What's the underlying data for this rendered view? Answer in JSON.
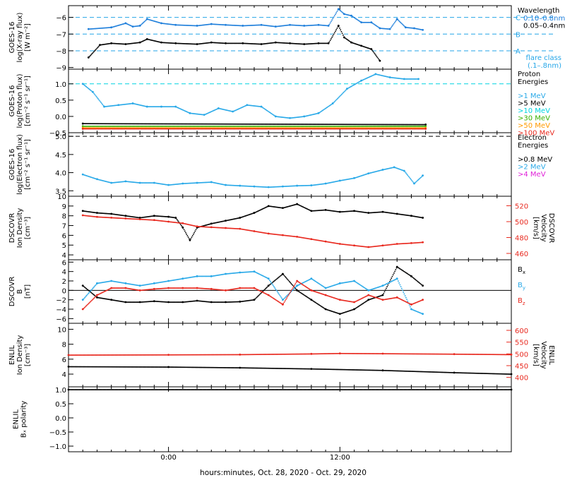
{
  "colors": {
    "axis": "#000000",
    "blue": "#1f7fdb",
    "lightblue": "#29a9e8",
    "cyan": "#00d4e0",
    "green": "#38b000",
    "orange": "#ff9a00",
    "red": "#e8281e",
    "magenta": "#e020d8",
    "dash": "#25a6e8"
  },
  "xaxis": {
    "title": "hours:minutes, Oct. 28, 2020 - Oct. 29, 2020",
    "ticks": [
      {
        "hour": 0,
        "label": "0:00"
      },
      {
        "hour": 12,
        "label": "12:00"
      }
    ],
    "xlim": [
      -7,
      24
    ],
    "minor_step_hours": 1
  },
  "chart_data": [
    {
      "id": "xray",
      "type": "scatter",
      "ylabel_lines": [
        "GOES-16",
        "log(X-ray flux)",
        "[W m⁻²]"
      ],
      "ylim": [
        -9.1,
        -5.3
      ],
      "yticks": [
        {
          "v": -9,
          "t": "−9"
        },
        {
          "v": -8,
          "t": "−8"
        },
        {
          "v": -7,
          "t": "−7"
        },
        {
          "v": -6,
          "t": "−6"
        }
      ],
      "legend_title": "Wavelength",
      "legend": [
        {
          "t": "0.10–0.8nm",
          "c": "blue"
        },
        {
          "t": "0.05–0.4nm",
          "c": "axis"
        }
      ],
      "flare_classes": [
        {
          "label": "C",
          "y": -6
        },
        {
          "label": "B",
          "y": -7
        },
        {
          "label": "A",
          "y": -8
        }
      ],
      "flare_note": [
        "flare class",
        "(.1–.8nm)"
      ],
      "series": [
        {
          "color": "blue",
          "x": [
            -5.6,
            -4,
            -3,
            -2.5,
            -2,
            -1.5,
            -0.5,
            0.5,
            2,
            3,
            4,
            5.2,
            6.5,
            7.5,
            8.5,
            9.5,
            10.5,
            11.2,
            11.9,
            12.3,
            12.8,
            13.5,
            14.2,
            14.8,
            15.5,
            16,
            16.6,
            17.2,
            17.8
          ],
          "y": [
            -6.7,
            -6.6,
            -6.35,
            -6.55,
            -6.5,
            -6.1,
            -6.35,
            -6.45,
            -6.5,
            -6.4,
            -6.45,
            -6.5,
            -6.45,
            -6.55,
            -6.45,
            -6.5,
            -6.45,
            -6.5,
            -5.5,
            -5.8,
            -5.9,
            -6.3,
            -6.3,
            -6.65,
            -6.7,
            -6.1,
            -6.6,
            -6.65,
            -6.75
          ]
        },
        {
          "color": "axis",
          "x": [
            -5.6,
            -4.8,
            -4,
            -3,
            -2,
            -1.5,
            -0.5,
            0.5,
            2,
            3,
            4,
            5.2,
            6.5,
            7.5,
            8.5,
            9.5,
            10.5,
            11.2,
            11.9,
            12.3,
            12.8,
            13.5,
            14.2,
            14.8
          ],
          "y": [
            -8.4,
            -7.65,
            -7.55,
            -7.6,
            -7.5,
            -7.3,
            -7.5,
            -7.55,
            -7.6,
            -7.5,
            -7.55,
            -7.55,
            -7.6,
            -7.5,
            -7.55,
            -7.6,
            -7.55,
            -7.55,
            -6.5,
            -7.2,
            -7.5,
            -7.7,
            -7.9,
            -8.6
          ]
        }
      ]
    },
    {
      "id": "proton",
      "type": "scatter",
      "ylabel_lines": [
        "GOES-16",
        "log(Proton flux)",
        "[cm⁻² s⁻¹ sr⁻¹]"
      ],
      "ylim": [
        -0.5,
        1.45
      ],
      "yticks": [
        {
          "v": -0.5,
          "t": "−0.5"
        },
        {
          "v": 0,
          "t": "0.0"
        },
        {
          "v": 0.5,
          "t": "0.5"
        },
        {
          "v": 1,
          "t": "1.0"
        }
      ],
      "legend_title": [
        "Proton",
        "Energies"
      ],
      "legend": [
        {
          "t": ">1 MeV",
          "c": "lightblue"
        },
        {
          "t": ">5 MeV",
          "c": "axis"
        },
        {
          "t": ">10 MeV",
          "c": "cyan"
        },
        {
          "t": ">30 MeV",
          "c": "green"
        },
        {
          "t": ">50 MeV",
          "c": "orange"
        },
        {
          "t": ">100 MeV",
          "c": "red"
        }
      ],
      "threshold": 1.0,
      "series": [
        {
          "color": "lightblue",
          "x": [
            -6,
            -5.3,
            -4.5,
            -3.5,
            -2.5,
            -1.5,
            -0.5,
            0.5,
            1.5,
            2.5,
            3.5,
            4.5,
            5.5,
            6.5,
            7.5,
            8.5,
            9.5,
            10.5,
            11.5,
            12.5,
            13.5,
            14.5,
            15.5,
            16.5,
            17.5
          ],
          "y": [
            1.0,
            0.75,
            0.3,
            0.35,
            0.4,
            0.3,
            0.3,
            0.3,
            0.1,
            0.05,
            0.25,
            0.15,
            0.35,
            0.3,
            0.0,
            -0.05,
            0.0,
            0.1,
            0.4,
            0.85,
            1.1,
            1.3,
            1.2,
            1.15,
            1.15
          ]
        },
        {
          "color": "axis",
          "x": [
            -6,
            18
          ],
          "y": [
            -0.22,
            -0.25
          ]
        },
        {
          "color": "green",
          "x": [
            -6,
            18
          ],
          "y": [
            -0.3,
            -0.3
          ]
        },
        {
          "color": "orange",
          "x": [
            -6,
            18
          ],
          "y": [
            -0.35,
            -0.35
          ]
        },
        {
          "color": "red",
          "x": [
            -6,
            18
          ],
          "y": [
            -0.38,
            -0.38
          ]
        }
      ]
    },
    {
      "id": "electron",
      "type": "scatter",
      "ylabel_lines": [
        "GOES-16",
        "log(Electron flux)",
        "[cm⁻² s⁻¹ sr⁻¹]"
      ],
      "ylim": [
        3.35,
        5.1
      ],
      "yticks": [
        {
          "v": 3.5,
          "t": "3.5"
        },
        {
          "v": 4,
          "t": "4.0"
        },
        {
          "v": 4.5,
          "t": "4.5"
        },
        {
          "v": 5,
          "t": "5.0"
        }
      ],
      "legend_title": [
        "Electron",
        "Energies"
      ],
      "legend": [
        {
          "t": ">0.8 MeV",
          "c": "axis"
        },
        {
          "t": ">2 MeV",
          "c": "lightblue"
        },
        {
          "t": ">4 MeV",
          "c": "magenta"
        }
      ],
      "threshold": 5.0,
      "series": [
        {
          "color": "lightblue",
          "x": [
            -6,
            -5,
            -4,
            -3,
            -2,
            -1,
            0,
            1,
            2,
            3,
            4,
            5,
            6,
            7,
            8,
            9,
            10,
            11,
            12,
            13,
            14,
            15,
            15.8,
            16.5,
            17.2,
            17.8
          ],
          "y": [
            3.95,
            3.82,
            3.72,
            3.76,
            3.72,
            3.72,
            3.66,
            3.7,
            3.72,
            3.74,
            3.66,
            3.64,
            3.62,
            3.6,
            3.62,
            3.64,
            3.65,
            3.7,
            3.78,
            3.85,
            3.98,
            4.08,
            4.15,
            4.05,
            3.7,
            3.92
          ]
        }
      ]
    },
    {
      "id": "dscovr_density",
      "type": "scatter",
      "ylabel_lines": [
        "DSCOVR",
        "Ion Density",
        "[cm⁻³]"
      ],
      "ylabel_right_lines": [
        "DSCOVR",
        "Velocity",
        "[km/s]"
      ],
      "ylim": [
        3.5,
        10
      ],
      "yticks": [
        {
          "v": 4,
          "t": "4"
        },
        {
          "v": 5,
          "t": "5"
        },
        {
          "v": 6,
          "t": "6"
        },
        {
          "v": 7,
          "t": "7"
        },
        {
          "v": 8,
          "t": "8"
        },
        {
          "v": 9,
          "t": "9"
        },
        {
          "v": 10,
          "t": "10"
        }
      ],
      "ylim_right": [
        452,
        532
      ],
      "yticks_right": [
        {
          "v": 460,
          "t": "460"
        },
        {
          "v": 480,
          "t": "480"
        },
        {
          "v": 500,
          "t": "500"
        },
        {
          "v": 520,
          "t": "520"
        }
      ],
      "series": [
        {
          "color": "axis",
          "axis": "left",
          "x": [
            -6,
            -5,
            -4,
            -3,
            -2,
            -1,
            0,
            0.5,
            1,
            1.5,
            2,
            3,
            4,
            5,
            6,
            7,
            8,
            9,
            10,
            11,
            12,
            13,
            14,
            15,
            16,
            17,
            17.8
          ],
          "y": [
            8.5,
            8.3,
            8.2,
            8.0,
            7.8,
            8.0,
            7.9,
            7.8,
            6.8,
            5.5,
            6.8,
            7.2,
            7.5,
            7.8,
            8.3,
            9.0,
            8.8,
            9.2,
            8.5,
            8.6,
            8.4,
            8.5,
            8.3,
            8.4,
            8.2,
            8.0,
            7.8
          ]
        },
        {
          "color": "red",
          "axis": "right",
          "x": [
            -6,
            -5,
            -4,
            -3,
            -2,
            -1,
            0,
            1,
            2,
            3,
            4,
            5,
            6,
            7,
            8,
            9,
            10,
            11,
            12,
            13,
            14,
            15,
            16,
            17,
            17.8
          ],
          "y": [
            508,
            506,
            505,
            504,
            503,
            502,
            500,
            498,
            494,
            493,
            492,
            491,
            488,
            485,
            483,
            481,
            478,
            475,
            472,
            470,
            468,
            470,
            472,
            473,
            474
          ]
        }
      ]
    },
    {
      "id": "dscovr_b",
      "type": "scatter",
      "ylabel_lines": [
        "DSCOVR",
        "B",
        "[nT]"
      ],
      "ylim": [
        -7,
        6.5
      ],
      "yticks": [
        {
          "v": -6,
          "t": "−6"
        },
        {
          "v": -4,
          "t": "−4"
        },
        {
          "v": -2,
          "t": "−2"
        },
        {
          "v": 0,
          "t": "0"
        },
        {
          "v": 2,
          "t": "2"
        },
        {
          "v": 4,
          "t": "4"
        },
        {
          "v": 6,
          "t": "6"
        }
      ],
      "zero_line": true,
      "legend": [
        {
          "t": "B",
          "sub": "x",
          "c": "axis"
        },
        {
          "t": "B",
          "sub": "y",
          "c": "lightblue"
        },
        {
          "t": "B",
          "sub": "z",
          "c": "red"
        }
      ],
      "series": [
        {
          "color": "axis",
          "x": [
            -6,
            -5,
            -4,
            -3,
            -2,
            -1,
            0,
            1,
            2,
            3,
            4,
            5,
            6,
            7,
            8,
            9,
            10,
            11,
            12,
            13,
            14,
            15,
            16,
            17,
            17.8
          ],
          "y": [
            1.0,
            -1.5,
            -2.0,
            -2.5,
            -2.5,
            -2.3,
            -2.5,
            -2.5,
            -2.2,
            -2.5,
            -2.5,
            -2.4,
            -2.0,
            1.0,
            3.5,
            0.0,
            -2.0,
            -4.0,
            -5.0,
            -4.0,
            -2.0,
            -1.0,
            5.0,
            3.0,
            1.0
          ]
        },
        {
          "color": "lightblue",
          "x": [
            -6,
            -5,
            -4,
            -3,
            -2,
            -1,
            0,
            1,
            2,
            3,
            4,
            5,
            6,
            7,
            8,
            9,
            10,
            11,
            12,
            13,
            14,
            15,
            16,
            17,
            17.8
          ],
          "y": [
            -2.0,
            1.5,
            2.0,
            1.5,
            1.0,
            1.5,
            2.0,
            2.5,
            3.0,
            3.0,
            3.5,
            3.8,
            4.0,
            2.5,
            -2.0,
            1.0,
            2.5,
            0.5,
            1.5,
            2.0,
            0.0,
            1.0,
            2.5,
            -4.0,
            -5.0
          ]
        },
        {
          "color": "red",
          "x": [
            -6,
            -5,
            -4,
            -3,
            -2,
            -1,
            0,
            1,
            2,
            3,
            4,
            5,
            6,
            7,
            8,
            9,
            10,
            11,
            12,
            13,
            14,
            15,
            16,
            17,
            17.8
          ],
          "y": [
            -4.0,
            -1.0,
            0.5,
            0.5,
            0.0,
            0.3,
            0.5,
            0.5,
            0.5,
            0.3,
            0.0,
            0.5,
            0.5,
            -1.0,
            -3.0,
            2.0,
            0.0,
            -1.0,
            -2.0,
            -2.5,
            -1.0,
            -2.0,
            -1.5,
            -3.0,
            -2.0
          ]
        }
      ]
    },
    {
      "id": "enlil_density",
      "type": "scatter",
      "ylabel_lines": [
        "ENLIL",
        "Ion Density",
        "[cm⁻³]"
      ],
      "ylabel_right_lines": [
        "ENLIL",
        "Velocity",
        "[km/s]"
      ],
      "ylim": [
        2.3,
        10.8
      ],
      "yticks": [
        {
          "v": 4,
          "t": "4"
        },
        {
          "v": 6,
          "t": "6"
        },
        {
          "v": 8,
          "t": "8"
        },
        {
          "v": 10,
          "t": "10"
        }
      ],
      "ylim_right": [
        360,
        630
      ],
      "yticks_right": [
        {
          "v": 400,
          "t": "400"
        },
        {
          "v": 450,
          "t": "450"
        },
        {
          "v": 500,
          "t": "500"
        },
        {
          "v": 550,
          "t": "550"
        },
        {
          "v": 600,
          "t": "600"
        }
      ],
      "series": [
        {
          "color": "axis",
          "axis": "left",
          "x": [
            -7,
            0,
            5,
            10,
            15,
            20,
            24
          ],
          "y": [
            5.0,
            4.95,
            4.85,
            4.7,
            4.5,
            4.2,
            4.0
          ]
        },
        {
          "color": "red",
          "axis": "right",
          "x": [
            -7,
            0,
            5,
            10,
            12,
            15,
            20,
            24
          ],
          "y": [
            495,
            496,
            497,
            500,
            502,
            501,
            499,
            497
          ]
        }
      ]
    },
    {
      "id": "enlil_polarity",
      "type": "scatter",
      "ylabel_lines": [
        "ENLIL",
        "Bₓ polarity"
      ],
      "ylim": [
        -1.2,
        1.1
      ],
      "yticks": [
        {
          "v": -1,
          "t": "−1.0"
        },
        {
          "v": -0.5,
          "t": "−0.5"
        },
        {
          "v": 0,
          "t": "0.0"
        },
        {
          "v": 0.5,
          "t": "0.5"
        },
        {
          "v": 1,
          "t": "1.0"
        }
      ],
      "series": [
        {
          "color": "axis",
          "x": [
            -7,
            24
          ],
          "y": [
            1.0,
            1.0
          ]
        }
      ]
    }
  ]
}
